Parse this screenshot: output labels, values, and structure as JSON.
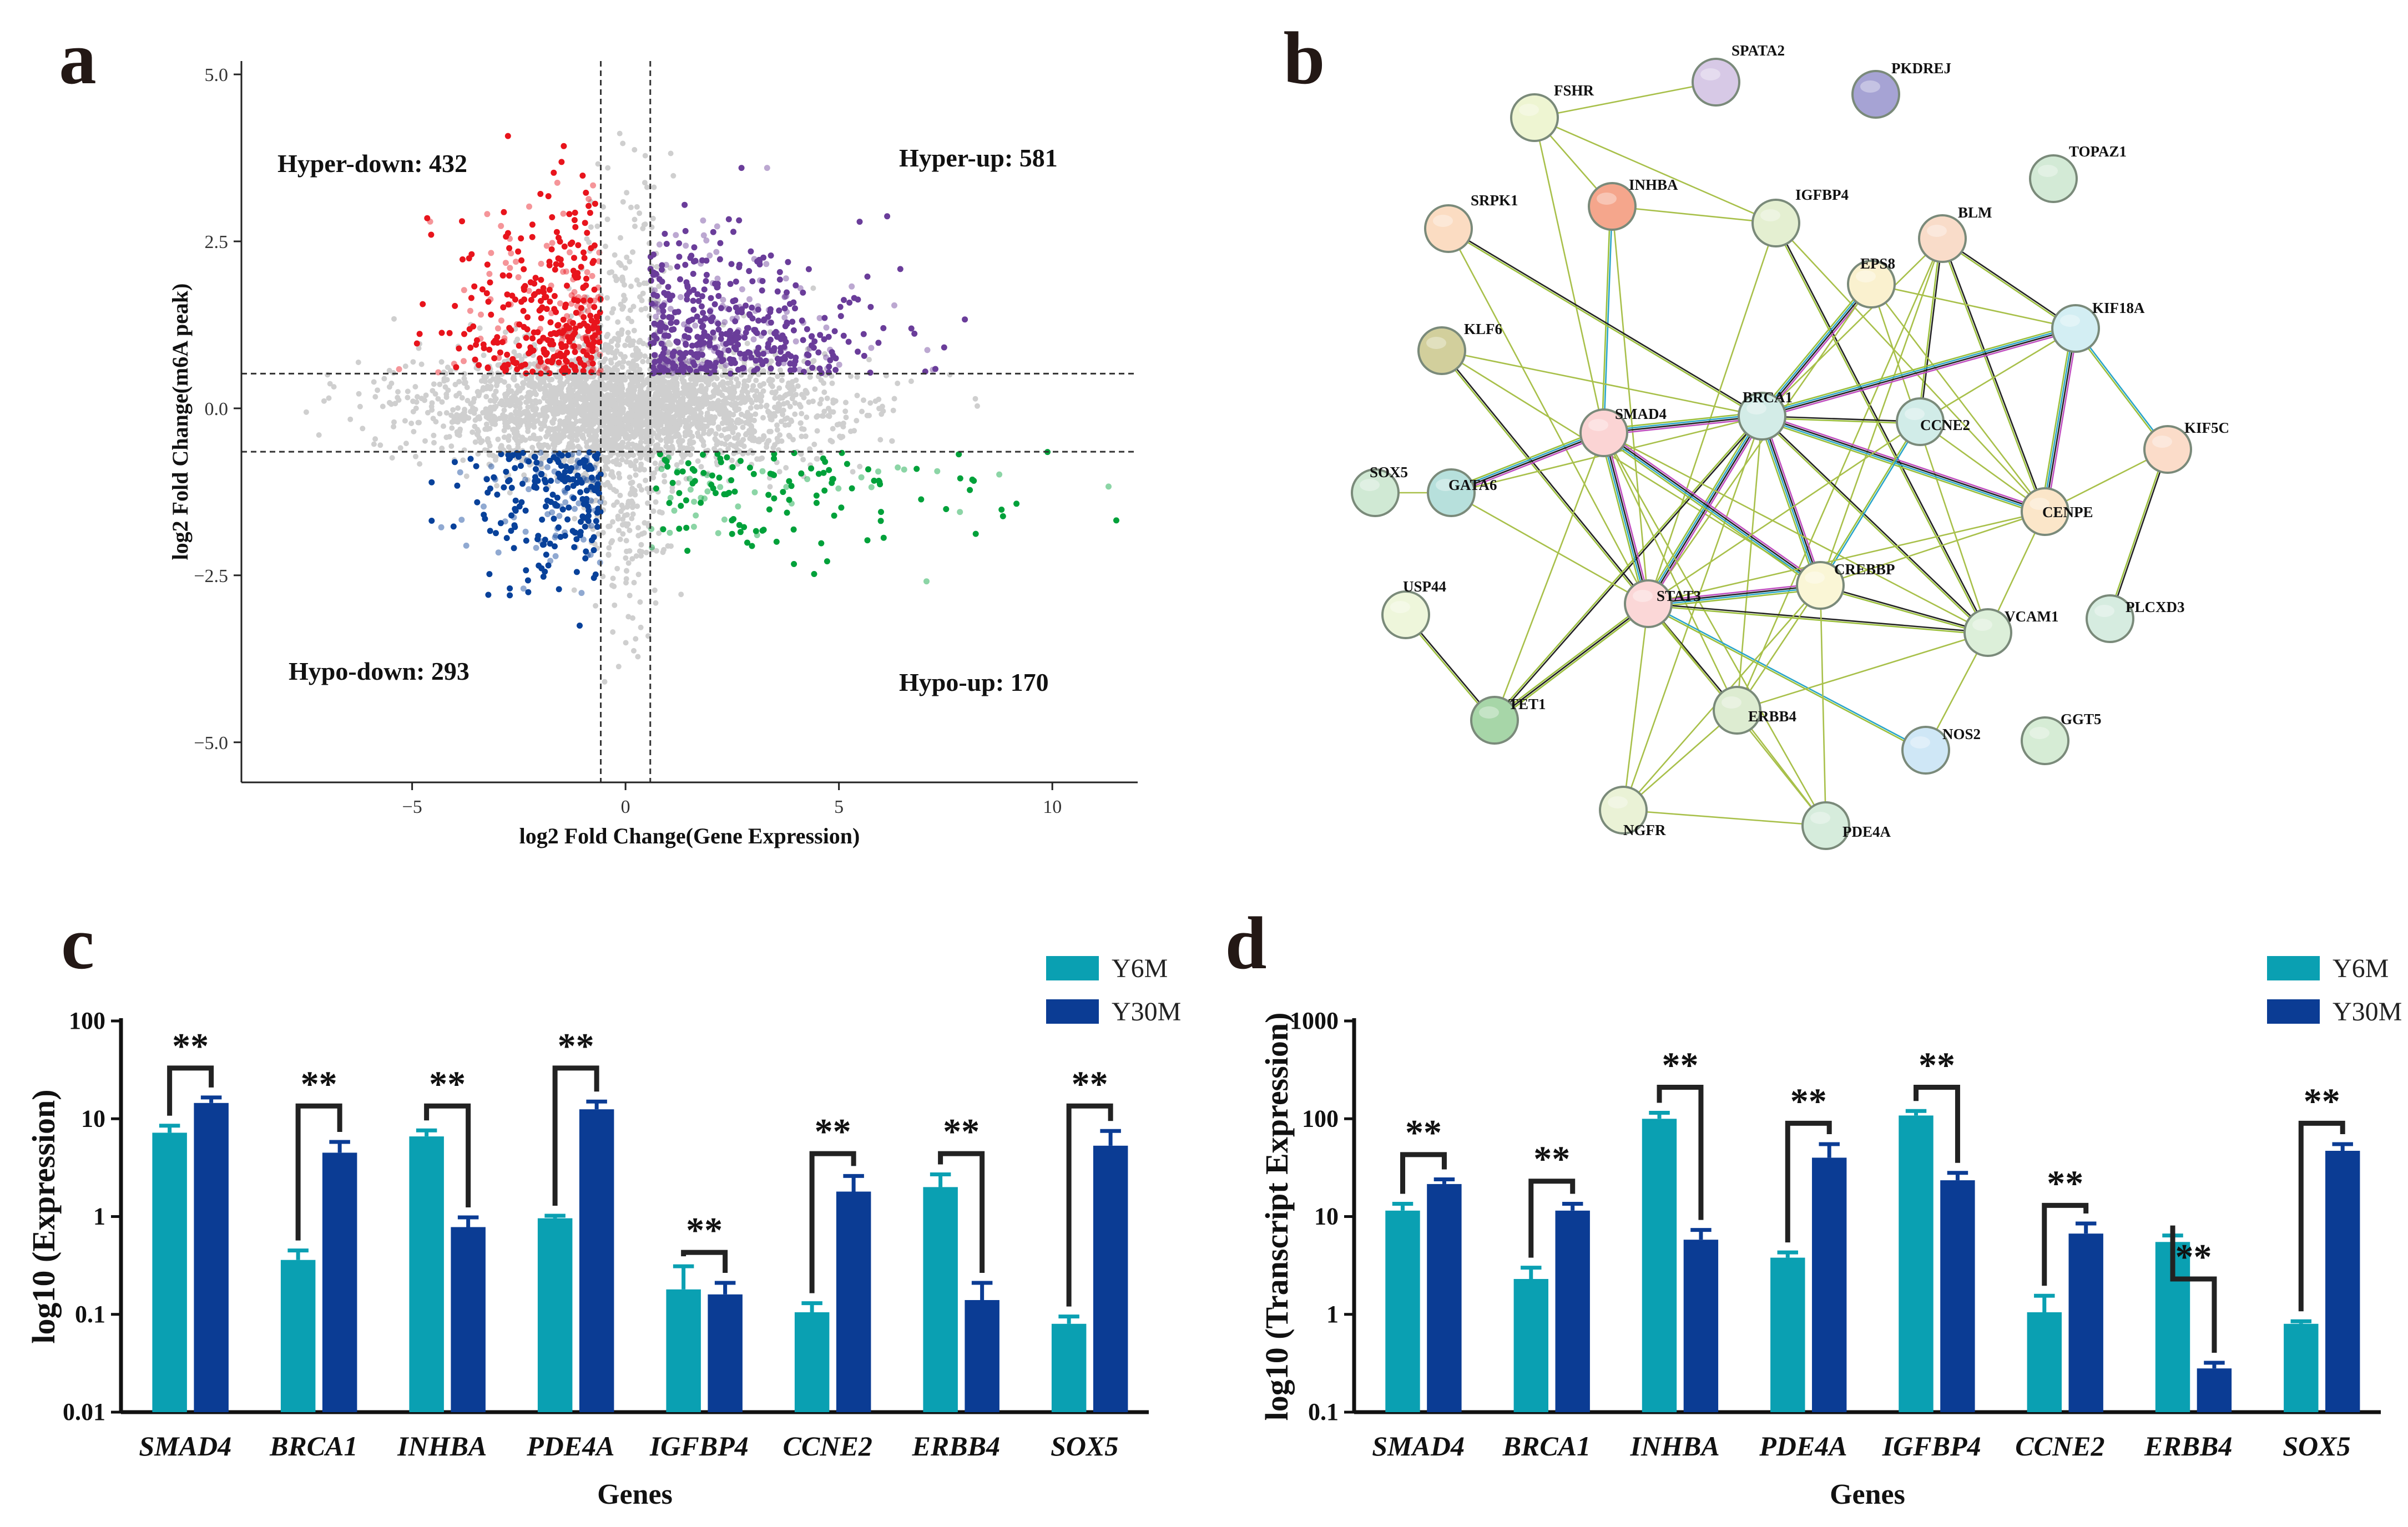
{
  "figure": {
    "panels": [
      {
        "letter": "a"
      },
      {
        "letter": "b"
      },
      {
        "letter": "c"
      },
      {
        "letter": "d"
      }
    ]
  },
  "chart_data": [
    {
      "panel": "a",
      "type": "scatter",
      "title": "",
      "xlabel": "log2 Fold Change(Gene Expression)",
      "ylabel": "log2 Fold Change(m6A peak)",
      "xlim": [
        -9,
        12
      ],
      "ylim": [
        -5.6,
        5.2
      ],
      "xticks": [
        -5,
        0,
        5,
        10
      ],
      "xticklabels": [
        "−5",
        "0",
        "5",
        "10"
      ],
      "yticks": [
        5.0,
        2.5,
        0.0,
        -2.5,
        -5.0
      ],
      "yticklabels": [
        "5.0",
        "2.5",
        "0.0",
        "−2.5",
        "−5.0"
      ],
      "thresholds": {
        "x": [
          -0.58,
          0.58
        ],
        "y": [
          0.52,
          -0.65
        ]
      },
      "quadrants": [
        {
          "name": "Hyper-down",
          "count": 432,
          "label": "Hyper-down: 432",
          "color": "#e8141c",
          "x_range": [
            -5.5,
            -0.58
          ],
          "y_range": [
            0.52,
            4.3
          ]
        },
        {
          "name": "Hyper-up",
          "count": 581,
          "label": "Hyper-up: 581",
          "color": "#6a3d9a",
          "x_range": [
            0.58,
            8
          ],
          "y_range": [
            0.52,
            3.6
          ]
        },
        {
          "name": "Hypo-down",
          "count": 293,
          "label": "Hypo-down: 293",
          "color": "#08419a",
          "x_range": [
            -5,
            -0.58
          ],
          "y_range": [
            -3.6,
            -0.65
          ]
        },
        {
          "name": "Hypo-up",
          "count": 170,
          "label": "Hypo-up: 170",
          "color": "#00a13a",
          "x_range": [
            0.58,
            11.5
          ],
          "y_range": [
            -3.5,
            -0.65
          ]
        }
      ],
      "background_color": "#cfcfcf"
    },
    {
      "panel": "b",
      "type": "network",
      "nodes": [
        {
          "id": "SPATA2",
          "label": "SPATA2",
          "color": "#d7c9e6"
        },
        {
          "id": "PKDREJ",
          "label": "PKDREJ",
          "color": "#a6a3d4"
        },
        {
          "id": "FSHR",
          "label": "FSHR",
          "color": "#eef5d2"
        },
        {
          "id": "INHBA",
          "label": "INHBA",
          "color": "#f5a68c"
        },
        {
          "id": "IGFBP4",
          "label": "IGFBP4",
          "color": "#e4efd1"
        },
        {
          "id": "TOPAZ1",
          "label": "TOPAZ1",
          "color": "#d3ead6"
        },
        {
          "id": "SRPK1",
          "label": "SRPK1",
          "color": "#fbdcc2"
        },
        {
          "id": "BLM",
          "label": "BLM",
          "color": "#f9dcc9"
        },
        {
          "id": "EPS8",
          "label": "EPS8",
          "color": "#faf1cf"
        },
        {
          "id": "KIF18A",
          "label": "KIF18A",
          "color": "#d3eef3"
        },
        {
          "id": "KLF6",
          "label": "KLF6",
          "color": "#d2cf9c"
        },
        {
          "id": "BRCA1",
          "label": "BRCA1",
          "color": "#d3ece7"
        },
        {
          "id": "SMAD4",
          "label": "SMAD4",
          "color": "#fbd4d4"
        },
        {
          "id": "CCNE2",
          "label": "CCNE2",
          "color": "#d1ece8"
        },
        {
          "id": "KIF5C",
          "label": "KIF5C",
          "color": "#fbdcc9"
        },
        {
          "id": "SOX5",
          "label": "SOX5",
          "color": "#d0e9d4"
        },
        {
          "id": "GATA6",
          "label": "GATA6",
          "color": "#b7e0dc"
        },
        {
          "id": "CENPE",
          "label": "CENPE",
          "color": "#fbe6c9"
        },
        {
          "id": "USP44",
          "label": "USP44",
          "color": "#eef6db"
        },
        {
          "id": "STAT3",
          "label": "STAT3",
          "color": "#fbd7d7"
        },
        {
          "id": "CREBBP",
          "label": "CREBBP",
          "color": "#faf6d6"
        },
        {
          "id": "VCAM1",
          "label": "VCAM1",
          "color": "#dcefd9"
        },
        {
          "id": "PLCXD3",
          "label": "PLCXD3",
          "color": "#d6ece0"
        },
        {
          "id": "TET1",
          "label": "TET1",
          "color": "#a7d6a8"
        },
        {
          "id": "ERBB4",
          "label": "ERBB4",
          "color": "#ddecd1"
        },
        {
          "id": "NOS2",
          "label": "NOS2",
          "color": "#cfe7f6"
        },
        {
          "id": "GGT5",
          "label": "GGT5",
          "color": "#d6ecd5"
        },
        {
          "id": "NGFR",
          "label": "NGFR",
          "color": "#eaf2d6"
        },
        {
          "id": "PDE4A",
          "label": "PDE4A",
          "color": "#d6ecdc"
        }
      ],
      "edges": [
        [
          "FSHR",
          "SPATA2"
        ],
        [
          "FSHR",
          "INHBA"
        ],
        [
          "FSHR",
          "IGFBP4"
        ],
        [
          "FSHR",
          "SMAD4"
        ],
        [
          "INHBA",
          "IGFBP4"
        ],
        [
          "INHBA",
          "SMAD4"
        ],
        [
          "INHBA",
          "STAT3"
        ],
        [
          "SRPK1",
          "BRCA1"
        ],
        [
          "SRPK1",
          "STAT3"
        ],
        [
          "IGFBP4",
          "STAT3"
        ],
        [
          "IGFBP4",
          "CENPE"
        ],
        [
          "IGFBP4",
          "VCAM1"
        ],
        [
          "BLM",
          "BRCA1"
        ],
        [
          "BLM",
          "KIF18A"
        ],
        [
          "BLM",
          "CCNE2"
        ],
        [
          "BLM",
          "CENPE"
        ],
        [
          "BLM",
          "CREBBP"
        ],
        [
          "BLM",
          "ERBB4"
        ],
        [
          "EPS8",
          "BRCA1"
        ],
        [
          "EPS8",
          "CENPE"
        ],
        [
          "EPS8",
          "KIF18A"
        ],
        [
          "EPS8",
          "VCAM1"
        ],
        [
          "EPS8",
          "STAT3"
        ],
        [
          "KIF18A",
          "BRCA1"
        ],
        [
          "KIF18A",
          "CCNE2"
        ],
        [
          "KIF18A",
          "CENPE"
        ],
        [
          "KIF18A",
          "KIF5C"
        ],
        [
          "KLF6",
          "BRCA1"
        ],
        [
          "KLF6",
          "STAT3"
        ],
        [
          "KLF6",
          "CREBBP"
        ],
        [
          "BRCA1",
          "SMAD4"
        ],
        [
          "BRCA1",
          "CCNE2"
        ],
        [
          "BRCA1",
          "CENPE"
        ],
        [
          "BRCA1",
          "STAT3"
        ],
        [
          "BRCA1",
          "CREBBP"
        ],
        [
          "BRCA1",
          "VCAM1"
        ],
        [
          "BRCA1",
          "GATA6"
        ],
        [
          "BRCA1",
          "ERBB4"
        ],
        [
          "BRCA1",
          "NGFR"
        ],
        [
          "BRCA1",
          "TET1"
        ],
        [
          "SMAD4",
          "GATA6"
        ],
        [
          "SMAD4",
          "STAT3"
        ],
        [
          "SMAD4",
          "CREBBP"
        ],
        [
          "SMAD4",
          "VCAM1"
        ],
        [
          "SMAD4",
          "ERBB4"
        ],
        [
          "SMAD4",
          "PDE4A"
        ],
        [
          "SMAD4",
          "TET1"
        ],
        [
          "CCNE2",
          "CREBBP"
        ],
        [
          "CCNE2",
          "CENPE"
        ],
        [
          "CCNE2",
          "STAT3"
        ],
        [
          "KIF5C",
          "CENPE"
        ],
        [
          "KIF5C",
          "PLCXD3"
        ],
        [
          "GATA6",
          "STAT3"
        ],
        [
          "GATA6",
          "SOX5"
        ],
        [
          "CENPE",
          "CREBBP"
        ],
        [
          "CENPE",
          "STAT3"
        ],
        [
          "CENPE",
          "VCAM1"
        ],
        [
          "USP44",
          "TET1"
        ],
        [
          "STAT3",
          "CREBBP"
        ],
        [
          "STAT3",
          "VCAM1"
        ],
        [
          "STAT3",
          "ERBB4"
        ],
        [
          "STAT3",
          "NOS2"
        ],
        [
          "STAT3",
          "NGFR"
        ],
        [
          "STAT3",
          "PDE4A"
        ],
        [
          "STAT3",
          "TET1"
        ],
        [
          "CREBBP",
          "VCAM1"
        ],
        [
          "CREBBP",
          "ERBB4"
        ],
        [
          "CREBBP",
          "PDE4A"
        ],
        [
          "CREBBP",
          "NGFR"
        ],
        [
          "VCAM1",
          "ERBB4"
        ],
        [
          "VCAM1",
          "NOS2"
        ],
        [
          "ERBB4",
          "NGFR"
        ],
        [
          "ERBB4",
          "PDE4A"
        ],
        [
          "NGFR",
          "PDE4A"
        ],
        [
          "TET1",
          "STAT3"
        ]
      ]
    },
    {
      "panel": "c",
      "type": "bar",
      "scale": "log10",
      "xlabel": "Genes",
      "ylabel": "log10 (Expression)",
      "ylim": [
        0.01,
        100
      ],
      "yticks": [
        100,
        10,
        1,
        0.1,
        0.01
      ],
      "yticklabels": [
        "100",
        "10",
        "1",
        "0.1",
        "0.01"
      ],
      "categories": [
        "SMAD4",
        "BRCA1",
        "INHBA",
        "PDE4A",
        "IGFBP4",
        "CCNE2",
        "ERBB4",
        "SOX5"
      ],
      "series": [
        {
          "name": "Y6M",
          "color": "#0aa0b2",
          "values": [
            7.2,
            0.36,
            6.6,
            0.96,
            0.18,
            0.105,
            2.0,
            0.08
          ],
          "errors": [
            8.5,
            0.45,
            7.6,
            1.02,
            0.31,
            0.13,
            2.7,
            0.095
          ]
        },
        {
          "name": "Y30M",
          "color": "#0b3c94",
          "values": [
            14.5,
            4.5,
            0.78,
            12.5,
            0.16,
            1.8,
            0.14,
            5.3
          ],
          "errors": [
            16.5,
            5.8,
            0.98,
            15.0,
            0.21,
            2.6,
            0.21,
            7.5
          ]
        }
      ],
      "significance": [
        {
          "label": "**",
          "y": 33
        },
        {
          "label": "**",
          "y": 13.5
        },
        {
          "label": "**",
          "y": 13.5
        },
        {
          "label": "**",
          "y": 33
        },
        {
          "label": "**",
          "y": 0.43
        },
        {
          "label": "**",
          "y": 4.4
        },
        {
          "label": "**",
          "y": 4.4
        },
        {
          "label": "**",
          "y": 13.5
        }
      ],
      "legend": [
        "Y6M",
        "Y30M"
      ],
      "legend_position": "top-right"
    },
    {
      "panel": "d",
      "type": "bar",
      "scale": "log10",
      "xlabel": "Genes",
      "ylabel": "log10 (Transcript Expression)",
      "ylim": [
        0.1,
        1000
      ],
      "yticks": [
        1000,
        100,
        10,
        1,
        0.1
      ],
      "yticklabels": [
        "1000",
        "100",
        "10",
        "1",
        "0.1"
      ],
      "categories": [
        "SMAD4",
        "BRCA1",
        "INHBA",
        "PDE4A",
        "IGFBP4",
        "CCNE2",
        "ERBB4",
        "SOX5"
      ],
      "series": [
        {
          "name": "Y6M",
          "color": "#0aa0b2",
          "values": [
            11.5,
            2.3,
            100,
            3.8,
            108,
            1.05,
            5.5,
            0.8
          ],
          "errors": [
            13.5,
            3.0,
            115,
            4.3,
            120,
            1.55,
            6.4,
            0.85
          ]
        },
        {
          "name": "Y30M",
          "color": "#0b3c94",
          "values": [
            21.5,
            11.5,
            5.8,
            40,
            23.5,
            6.7,
            0.28,
            47
          ],
          "errors": [
            24,
            13.5,
            7.3,
            55,
            28,
            8.5,
            0.32,
            55
          ]
        }
      ],
      "significance": [
        {
          "label": "**",
          "y": 43
        },
        {
          "label": "**",
          "y": 23
        },
        {
          "label": "**",
          "y": 210
        },
        {
          "label": "**",
          "y": 90
        },
        {
          "label": "**",
          "y": 210
        },
        {
          "label": "**",
          "y": 13
        },
        {
          "label": "**",
          "y": 2.3
        },
        {
          "label": "**",
          "y": 90
        }
      ],
      "legend": [
        "Y6M",
        "Y30M"
      ],
      "legend_position": "top-right"
    }
  ]
}
